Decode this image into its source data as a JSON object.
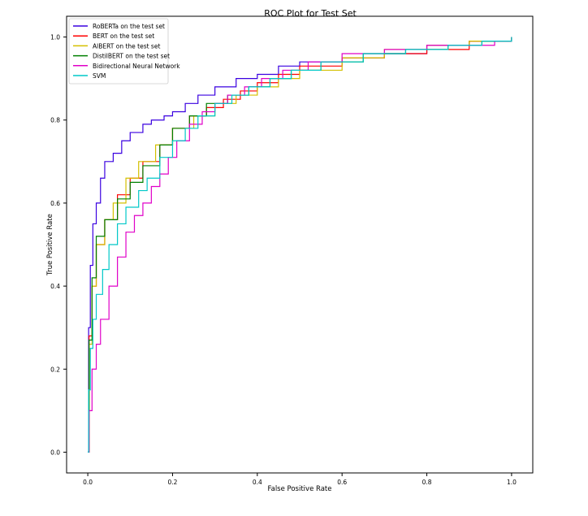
{
  "chart_data": {
    "type": "line",
    "title": "ROC Plot for Test Set",
    "xlabel": "False Positive Rate",
    "ylabel": "True Positive Rate",
    "xlim": [
      -0.05,
      1.05
    ],
    "ylim": [
      -0.05,
      1.05
    ],
    "x_ticks": [
      0.0,
      0.2,
      0.4,
      0.6,
      0.8,
      1.0
    ],
    "y_ticks": [
      0.0,
      0.2,
      0.4,
      0.6,
      0.8,
      1.0
    ],
    "x_tick_labels": [
      "0.0",
      "0.2",
      "0.4",
      "0.6",
      "0.8",
      "1.0"
    ],
    "y_tick_labels": [
      "0.0",
      "0.2",
      "0.4",
      "0.6",
      "0.8",
      "1.0"
    ],
    "grid": false,
    "legend_position": "upper-left",
    "series": [
      {
        "name": "RoBERTa on the test set",
        "color": "#3a00e0",
        "points": [
          [
            0,
            0
          ],
          [
            0.002,
            0.3
          ],
          [
            0.006,
            0.45
          ],
          [
            0.012,
            0.55
          ],
          [
            0.02,
            0.6
          ],
          [
            0.03,
            0.66
          ],
          [
            0.04,
            0.7
          ],
          [
            0.06,
            0.72
          ],
          [
            0.08,
            0.75
          ],
          [
            0.1,
            0.77
          ],
          [
            0.13,
            0.79
          ],
          [
            0.15,
            0.8
          ],
          [
            0.18,
            0.81
          ],
          [
            0.2,
            0.82
          ],
          [
            0.23,
            0.84
          ],
          [
            0.26,
            0.86
          ],
          [
            0.3,
            0.88
          ],
          [
            0.35,
            0.9
          ],
          [
            0.4,
            0.91
          ],
          [
            0.45,
            0.93
          ],
          [
            0.5,
            0.94
          ],
          [
            0.6,
            0.95
          ],
          [
            0.7,
            0.96
          ],
          [
            0.8,
            0.98
          ],
          [
            0.9,
            0.99
          ],
          [
            1.0,
            1.0
          ]
        ]
      },
      {
        "name": "BERT on the test set",
        "color": "#ff0000",
        "points": [
          [
            0,
            0
          ],
          [
            0.003,
            0.28
          ],
          [
            0.01,
            0.4
          ],
          [
            0.02,
            0.5
          ],
          [
            0.04,
            0.56
          ],
          [
            0.07,
            0.62
          ],
          [
            0.1,
            0.66
          ],
          [
            0.13,
            0.7
          ],
          [
            0.17,
            0.74
          ],
          [
            0.2,
            0.78
          ],
          [
            0.24,
            0.81
          ],
          [
            0.28,
            0.83
          ],
          [
            0.32,
            0.85
          ],
          [
            0.36,
            0.87
          ],
          [
            0.4,
            0.89
          ],
          [
            0.45,
            0.91
          ],
          [
            0.5,
            0.93
          ],
          [
            0.6,
            0.95
          ],
          [
            0.7,
            0.96
          ],
          [
            0.8,
            0.97
          ],
          [
            0.9,
            0.99
          ],
          [
            1.0,
            1.0
          ]
        ]
      },
      {
        "name": "AlBERT on the test set",
        "color": "#d4c000",
        "points": [
          [
            0,
            0
          ],
          [
            0.003,
            0.26
          ],
          [
            0.01,
            0.4
          ],
          [
            0.02,
            0.5
          ],
          [
            0.04,
            0.56
          ],
          [
            0.06,
            0.6
          ],
          [
            0.09,
            0.66
          ],
          [
            0.12,
            0.7
          ],
          [
            0.16,
            0.74
          ],
          [
            0.2,
            0.78
          ],
          [
            0.25,
            0.81
          ],
          [
            0.3,
            0.84
          ],
          [
            0.35,
            0.86
          ],
          [
            0.4,
            0.88
          ],
          [
            0.45,
            0.9
          ],
          [
            0.5,
            0.92
          ],
          [
            0.6,
            0.95
          ],
          [
            0.7,
            0.97
          ],
          [
            0.8,
            0.98
          ],
          [
            0.9,
            0.99
          ],
          [
            1.0,
            1.0
          ]
        ]
      },
      {
        "name": "DistilBERT on the test set",
        "color": "#008000",
        "points": [
          [
            0,
            0
          ],
          [
            0.003,
            0.27
          ],
          [
            0.01,
            0.42
          ],
          [
            0.02,
            0.52
          ],
          [
            0.04,
            0.56
          ],
          [
            0.07,
            0.61
          ],
          [
            0.1,
            0.65
          ],
          [
            0.13,
            0.69
          ],
          [
            0.17,
            0.74
          ],
          [
            0.2,
            0.78
          ],
          [
            0.24,
            0.81
          ],
          [
            0.28,
            0.84
          ],
          [
            0.33,
            0.86
          ],
          [
            0.38,
            0.88
          ],
          [
            0.43,
            0.9
          ],
          [
            0.48,
            0.92
          ],
          [
            0.55,
            0.94
          ],
          [
            0.65,
            0.96
          ],
          [
            0.75,
            0.97
          ],
          [
            0.85,
            0.98
          ],
          [
            0.93,
            0.99
          ],
          [
            1.0,
            1.0
          ]
        ]
      },
      {
        "name": "Bidirectional Neural Network",
        "color": "#e000c8",
        "points": [
          [
            0,
            0
          ],
          [
            0.003,
            0.1
          ],
          [
            0.01,
            0.2
          ],
          [
            0.02,
            0.26
          ],
          [
            0.03,
            0.32
          ],
          [
            0.05,
            0.4
          ],
          [
            0.07,
            0.47
          ],
          [
            0.09,
            0.53
          ],
          [
            0.11,
            0.57
          ],
          [
            0.13,
            0.6
          ],
          [
            0.15,
            0.64
          ],
          [
            0.17,
            0.67
          ],
          [
            0.19,
            0.71
          ],
          [
            0.21,
            0.75
          ],
          [
            0.24,
            0.79
          ],
          [
            0.27,
            0.82
          ],
          [
            0.3,
            0.84
          ],
          [
            0.33,
            0.86
          ],
          [
            0.37,
            0.88
          ],
          [
            0.41,
            0.9
          ],
          [
            0.46,
            0.92
          ],
          [
            0.52,
            0.94
          ],
          [
            0.6,
            0.96
          ],
          [
            0.7,
            0.97
          ],
          [
            0.8,
            0.98
          ],
          [
            0.9,
            0.98
          ],
          [
            0.96,
            0.99
          ],
          [
            1.0,
            1.0
          ]
        ]
      },
      {
        "name": "SVM",
        "color": "#00c8c8",
        "points": [
          [
            0,
            0
          ],
          [
            0.002,
            0.15
          ],
          [
            0.006,
            0.25
          ],
          [
            0.012,
            0.32
          ],
          [
            0.02,
            0.38
          ],
          [
            0.035,
            0.44
          ],
          [
            0.05,
            0.5
          ],
          [
            0.07,
            0.55
          ],
          [
            0.09,
            0.59
          ],
          [
            0.12,
            0.63
          ],
          [
            0.14,
            0.66
          ],
          [
            0.17,
            0.71
          ],
          [
            0.2,
            0.75
          ],
          [
            0.23,
            0.78
          ],
          [
            0.26,
            0.81
          ],
          [
            0.3,
            0.84
          ],
          [
            0.34,
            0.86
          ],
          [
            0.38,
            0.88
          ],
          [
            0.43,
            0.9
          ],
          [
            0.48,
            0.92
          ],
          [
            0.55,
            0.94
          ],
          [
            0.65,
            0.96
          ],
          [
            0.75,
            0.97
          ],
          [
            0.85,
            0.98
          ],
          [
            0.93,
            0.99
          ],
          [
            1.0,
            1.0
          ]
        ]
      }
    ]
  }
}
